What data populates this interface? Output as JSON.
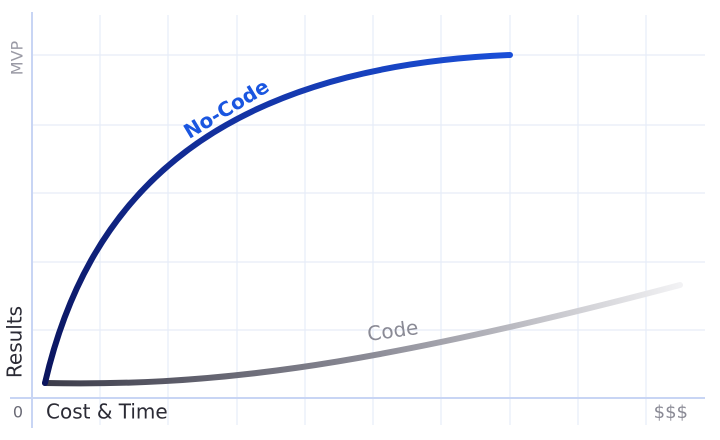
{
  "axis": {
    "y_top": "MVP",
    "y_label": "Results",
    "origin": "0",
    "x_label": "Cost & Time",
    "x_end": "$$$"
  },
  "curves": {
    "no_code": "No-Code",
    "code": "Code"
  }
}
